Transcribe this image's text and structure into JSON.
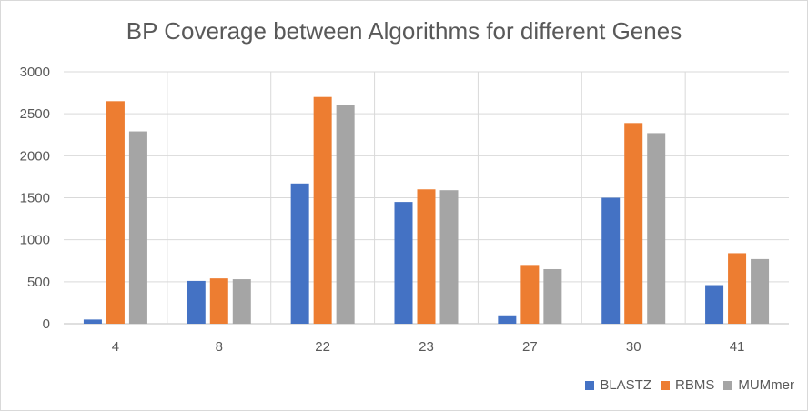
{
  "chart_data": {
    "type": "bar",
    "title": "BP Coverage between Algorithms for different Genes",
    "categories": [
      "4",
      "8",
      "22",
      "23",
      "27",
      "30",
      "41"
    ],
    "series": [
      {
        "name": "BLASTZ",
        "color": "#4472C4",
        "values": [
          50,
          510,
          1670,
          1450,
          100,
          1500,
          460
        ]
      },
      {
        "name": "RBMS",
        "color": "#ED7D31",
        "values": [
          2650,
          540,
          2700,
          1600,
          700,
          2390,
          840
        ]
      },
      {
        "name": "MUMmer",
        "color": "#A5A5A5",
        "values": [
          2290,
          530,
          2600,
          1590,
          650,
          2270,
          770
        ]
      }
    ],
    "ylim": [
      0,
      3000
    ],
    "yticks": [
      0,
      500,
      1000,
      1500,
      2000,
      2500,
      3000
    ],
    "grid": true,
    "legend_position": "bottom-right",
    "xlabel": "",
    "ylabel": ""
  }
}
